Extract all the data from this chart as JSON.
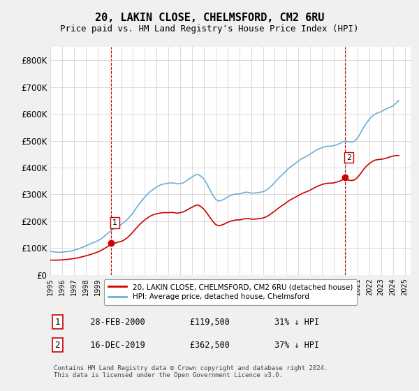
{
  "title": "20, LAKIN CLOSE, CHELMSFORD, CM2 6RU",
  "subtitle": "Price paid vs. HM Land Registry's House Price Index (HPI)",
  "title_fontsize": 11,
  "subtitle_fontsize": 9,
  "ylabel": "",
  "ylim": [
    0,
    850000
  ],
  "yticks": [
    0,
    100000,
    200000,
    300000,
    400000,
    500000,
    600000,
    700000,
    800000
  ],
  "ytick_labels": [
    "£0",
    "£100K",
    "£200K",
    "£300K",
    "£400K",
    "£500K",
    "£600K",
    "£700K",
    "£800K"
  ],
  "hpi_color": "#6baed6",
  "price_color": "#cc0000",
  "bg_color": "#f0f0f0",
  "plot_bg_color": "#ffffff",
  "grid_color": "#cccccc",
  "marker1_date_x": 2000.16,
  "marker1_value": 119500,
  "marker1_label": "1",
  "marker2_date_x": 2019.96,
  "marker2_value": 362500,
  "marker2_label": "2",
  "legend_label_price": "20, LAKIN CLOSE, CHELMSFORD, CM2 6RU (detached house)",
  "legend_label_hpi": "HPI: Average price, detached house, Chelmsford",
  "annotation1": "1    28-FEB-2000         £119,500         31% ↓ HPI",
  "annotation2": "2    16-DEC-2019         £362,500         37% ↓ HPI",
  "footer": "Contains HM Land Registry data © Crown copyright and database right 2024.\nThis data is licensed under the Open Government Licence v3.0.",
  "xmin": 1995,
  "xmax": 2025.5,
  "hpi_data_x": [
    1995.0,
    1995.25,
    1995.5,
    1995.75,
    1996.0,
    1996.25,
    1996.5,
    1996.75,
    1997.0,
    1997.25,
    1997.5,
    1997.75,
    1998.0,
    1998.25,
    1998.5,
    1998.75,
    1999.0,
    1999.25,
    1999.5,
    1999.75,
    2000.0,
    2000.25,
    2000.5,
    2000.75,
    2001.0,
    2001.25,
    2001.5,
    2001.75,
    2002.0,
    2002.25,
    2002.5,
    2002.75,
    2003.0,
    2003.25,
    2003.5,
    2003.75,
    2004.0,
    2004.25,
    2004.5,
    2004.75,
    2005.0,
    2005.25,
    2005.5,
    2005.75,
    2006.0,
    2006.25,
    2006.5,
    2006.75,
    2007.0,
    2007.25,
    2007.5,
    2007.75,
    2008.0,
    2008.25,
    2008.5,
    2008.75,
    2009.0,
    2009.25,
    2009.5,
    2009.75,
    2010.0,
    2010.25,
    2010.5,
    2010.75,
    2011.0,
    2011.25,
    2011.5,
    2011.75,
    2012.0,
    2012.25,
    2012.5,
    2012.75,
    2013.0,
    2013.25,
    2013.5,
    2013.75,
    2014.0,
    2014.25,
    2014.5,
    2014.75,
    2015.0,
    2015.25,
    2015.5,
    2015.75,
    2016.0,
    2016.25,
    2016.5,
    2016.75,
    2017.0,
    2017.25,
    2017.5,
    2017.75,
    2018.0,
    2018.25,
    2018.5,
    2018.75,
    2019.0,
    2019.25,
    2019.5,
    2019.75,
    2020.0,
    2020.25,
    2020.5,
    2020.75,
    2021.0,
    2021.25,
    2021.5,
    2021.75,
    2022.0,
    2022.25,
    2022.5,
    2022.75,
    2023.0,
    2023.25,
    2023.5,
    2023.75,
    2024.0,
    2024.25,
    2024.5
  ],
  "hpi_data_y": [
    88000,
    86000,
    85000,
    84000,
    85000,
    86000,
    87000,
    89000,
    92000,
    95000,
    99000,
    103000,
    108000,
    113000,
    118000,
    122000,
    127000,
    133000,
    141000,
    151000,
    160000,
    168000,
    175000,
    182000,
    188000,
    196000,
    206000,
    218000,
    231000,
    248000,
    263000,
    277000,
    290000,
    302000,
    312000,
    320000,
    328000,
    334000,
    338000,
    340000,
    342000,
    343000,
    342000,
    340000,
    340000,
    343000,
    350000,
    358000,
    365000,
    372000,
    375000,
    368000,
    358000,
    340000,
    318000,
    298000,
    282000,
    275000,
    278000,
    283000,
    290000,
    296000,
    300000,
    302000,
    302000,
    305000,
    308000,
    308000,
    305000,
    305000,
    306000,
    308000,
    310000,
    315000,
    323000,
    333000,
    345000,
    357000,
    368000,
    378000,
    390000,
    400000,
    408000,
    416000,
    425000,
    432000,
    438000,
    443000,
    450000,
    458000,
    465000,
    470000,
    475000,
    478000,
    480000,
    480000,
    482000,
    485000,
    490000,
    496000,
    500000,
    496000,
    495000,
    498000,
    510000,
    528000,
    548000,
    565000,
    580000,
    592000,
    600000,
    605000,
    608000,
    615000,
    620000,
    625000,
    630000,
    640000,
    650000
  ],
  "price_data_x": [
    1995.0,
    1995.25,
    1995.5,
    1995.75,
    1996.0,
    1996.25,
    1996.5,
    1996.75,
    1997.0,
    1997.25,
    1997.5,
    1997.75,
    1998.0,
    1998.25,
    1998.5,
    1998.75,
    1999.0,
    1999.25,
    1999.5,
    1999.75,
    2000.0,
    2000.25,
    2000.5,
    2000.75,
    2001.0,
    2001.25,
    2001.5,
    2001.75,
    2002.0,
    2002.25,
    2002.5,
    2002.75,
    2003.0,
    2003.25,
    2003.5,
    2003.75,
    2004.0,
    2004.25,
    2004.5,
    2004.75,
    2005.0,
    2005.25,
    2005.5,
    2005.75,
    2006.0,
    2006.25,
    2006.5,
    2006.75,
    2007.0,
    2007.25,
    2007.5,
    2007.75,
    2008.0,
    2008.25,
    2008.5,
    2008.75,
    2009.0,
    2009.25,
    2009.5,
    2009.75,
    2010.0,
    2010.25,
    2010.5,
    2010.75,
    2011.0,
    2011.25,
    2011.5,
    2011.75,
    2012.0,
    2012.25,
    2012.5,
    2012.75,
    2013.0,
    2013.25,
    2013.5,
    2013.75,
    2014.0,
    2014.25,
    2014.5,
    2014.75,
    2015.0,
    2015.25,
    2015.5,
    2015.75,
    2016.0,
    2016.25,
    2016.5,
    2016.75,
    2017.0,
    2017.25,
    2017.5,
    2017.75,
    2018.0,
    2018.25,
    2018.5,
    2018.75,
    2019.0,
    2019.25,
    2019.5,
    2019.75,
    2020.0,
    2020.25,
    2020.5,
    2020.75,
    2021.0,
    2021.25,
    2021.5,
    2021.75,
    2022.0,
    2022.25,
    2022.5,
    2022.75,
    2023.0,
    2023.25,
    2023.5,
    2023.75,
    2024.0,
    2024.25,
    2024.5
  ],
  "price_data_y": [
    55000,
    55000,
    55000,
    55500,
    56000,
    57000,
    58000,
    59500,
    61000,
    63000,
    65500,
    68000,
    71000,
    74000,
    77500,
    81000,
    85000,
    90000,
    96000,
    103000,
    110000,
    115000,
    119000,
    122000,
    125000,
    130000,
    138000,
    148000,
    160000,
    173000,
    185000,
    196000,
    205000,
    213000,
    220000,
    225000,
    228000,
    230000,
    232000,
    232000,
    232000,
    233000,
    232000,
    230000,
    232000,
    235000,
    240000,
    247000,
    252000,
    258000,
    261000,
    255000,
    245000,
    231000,
    215000,
    200000,
    188000,
    183000,
    186000,
    190000,
    196000,
    200000,
    203000,
    205000,
    205000,
    207000,
    210000,
    210000,
    208000,
    208000,
    209000,
    210000,
    212000,
    216000,
    222000,
    230000,
    238000,
    247000,
    255000,
    262000,
    270000,
    278000,
    284000,
    290000,
    296000,
    302000,
    307000,
    311000,
    316000,
    322000,
    328000,
    333000,
    337000,
    340000,
    342000,
    342000,
    343000,
    346000,
    350000,
    355000,
    358000,
    353000,
    352000,
    354000,
    363000,
    377000,
    392000,
    405000,
    415000,
    423000,
    428000,
    430000,
    431000,
    433000,
    436000,
    440000,
    443000,
    445000,
    445000
  ]
}
